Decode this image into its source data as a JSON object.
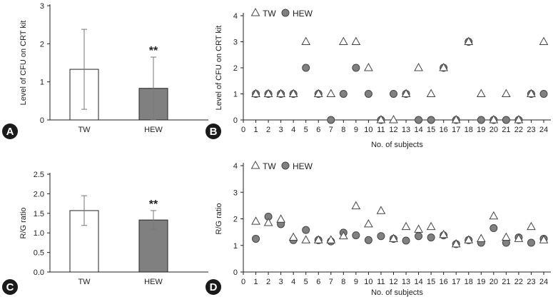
{
  "chart_data": [
    {
      "panel": "A",
      "type": "bar",
      "ylabel": "Level of CFU on CRT kit",
      "ylim": [
        0,
        3
      ],
      "yticks": [
        0,
        1,
        2,
        3
      ],
      "categories": [
        "TW",
        "HEW"
      ],
      "values": [
        1.33,
        0.83
      ],
      "errors": [
        1.05,
        0.82
      ],
      "significance": [
        "",
        "**"
      ],
      "bar_colors": [
        "#ffffff",
        "#808080"
      ]
    },
    {
      "panel": "B",
      "type": "scatter",
      "xlabel": "No. of subjects",
      "ylabel": "Level of CFU on CRT kit",
      "xlim": [
        0,
        24
      ],
      "ylim": [
        0,
        4
      ],
      "yticks": [
        0,
        1,
        2,
        3,
        4
      ],
      "x": [
        1,
        2,
        3,
        4,
        5,
        6,
        7,
        8,
        9,
        10,
        11,
        12,
        13,
        14,
        15,
        16,
        17,
        18,
        19,
        20,
        21,
        22,
        23,
        24
      ],
      "series": [
        {
          "name": "TW",
          "marker": "triangle",
          "values": [
            1,
            1,
            1,
            1,
            3,
            1,
            1,
            3,
            3,
            2,
            0,
            0,
            1,
            2,
            1,
            2,
            0,
            3,
            1,
            0,
            1,
            0,
            1,
            3
          ]
        },
        {
          "name": "HEW",
          "marker": "circle",
          "values": [
            1,
            1,
            1,
            1,
            2,
            1,
            0,
            1,
            2,
            1,
            0,
            1,
            1,
            0,
            0,
            2,
            0,
            3,
            0,
            0,
            0,
            0,
            1,
            1
          ]
        }
      ]
    },
    {
      "panel": "C",
      "type": "bar",
      "ylabel": "R/G ratio",
      "ylim": [
        0,
        2.5
      ],
      "yticks": [
        "0.0",
        "0.5",
        "1.0",
        "1.5",
        "2.0",
        "2.5"
      ],
      "categories": [
        "TW",
        "HEW"
      ],
      "values": [
        1.57,
        1.33
      ],
      "errors": [
        0.38,
        0.24
      ],
      "significance": [
        "",
        "**"
      ],
      "bar_colors": [
        "#ffffff",
        "#808080"
      ]
    },
    {
      "panel": "D",
      "type": "scatter",
      "xlabel": "No. of subjects",
      "ylabel": "R/G ratio",
      "xlim": [
        0,
        24
      ],
      "ylim": [
        0,
        4
      ],
      "yticks": [
        0,
        1,
        2,
        3,
        4
      ],
      "x": [
        1,
        2,
        3,
        4,
        5,
        6,
        7,
        8,
        9,
        10,
        11,
        12,
        13,
        14,
        15,
        16,
        17,
        18,
        19,
        20,
        21,
        22,
        23,
        24
      ],
      "series": [
        {
          "name": "TW",
          "marker": "triangle",
          "values": [
            1.9,
            1.85,
            1.98,
            1.3,
            1.2,
            1.2,
            1.2,
            1.35,
            2.48,
            1.8,
            2.3,
            1.25,
            1.7,
            1.6,
            1.7,
            1.4,
            1.05,
            1.2,
            1.25,
            2.1,
            1.3,
            1.25,
            1.7,
            1.2
          ]
        },
        {
          "name": "HEW",
          "marker": "circle",
          "values": [
            1.25,
            2.08,
            1.8,
            1.2,
            1.58,
            1.2,
            1.15,
            1.48,
            1.38,
            1.2,
            1.35,
            1.25,
            1.18,
            1.35,
            1.3,
            1.38,
            1.05,
            1.2,
            1.1,
            1.65,
            1.1,
            1.3,
            1.1,
            1.25
          ]
        }
      ]
    }
  ],
  "panel_labels": [
    "A",
    "B",
    "C",
    "D"
  ]
}
